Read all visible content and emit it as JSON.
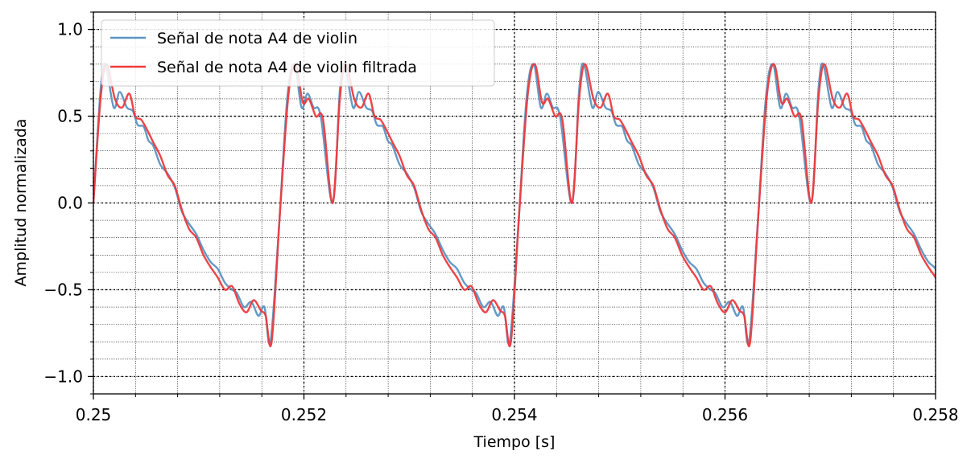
{
  "chart_data": {
    "type": "line",
    "title": "",
    "xlabel": "Tiempo [s]",
    "ylabel": "Amplitud normalizada",
    "xlim": [
      0.25,
      0.258
    ],
    "ylim": [
      -1.1,
      1.1
    ],
    "grid": true,
    "legend_position": "top-left",
    "x_ticks": [
      0.25,
      0.252,
      0.254,
      0.256,
      0.258
    ],
    "x_tick_labels": [
      "0.25",
      "0.252",
      "0.254",
      "0.256",
      "0.258"
    ],
    "y_ticks": [
      -1.0,
      -0.5,
      0.0,
      0.5,
      1.0
    ],
    "y_tick_labels": [
      "−1.0",
      "−0.5",
      "0.0",
      "0.5",
      "1.0"
    ],
    "series": [
      {
        "name": "Señal de nota A4 de violin",
        "color": "#5b93c2",
        "period_points": [
          [
            0.0,
            0.0
          ],
          [
            0.03,
            0.65
          ],
          [
            0.05,
            0.8
          ],
          [
            0.085,
            0.55
          ],
          [
            0.11,
            0.64
          ],
          [
            0.14,
            0.55
          ],
          [
            0.165,
            0.53
          ],
          [
            0.185,
            0.45
          ],
          [
            0.21,
            0.44
          ],
          [
            0.23,
            0.36
          ],
          [
            0.25,
            0.33
          ],
          [
            0.28,
            0.22
          ],
          [
            0.31,
            0.17
          ],
          [
            0.34,
            0.09
          ],
          [
            0.37,
            -0.05
          ],
          [
            0.4,
            -0.12
          ],
          [
            0.43,
            -0.18
          ],
          [
            0.46,
            -0.27
          ],
          [
            0.49,
            -0.34
          ],
          [
            0.52,
            -0.38
          ],
          [
            0.55,
            -0.46
          ],
          [
            0.58,
            -0.5
          ],
          [
            0.6,
            -0.52
          ],
          [
            0.63,
            -0.6
          ],
          [
            0.66,
            -0.57
          ],
          [
            0.69,
            -0.65
          ],
          [
            0.715,
            -0.6
          ],
          [
            0.74,
            -0.8
          ],
          [
            0.775,
            -0.15
          ],
          [
            0.81,
            0.6
          ],
          [
            0.84,
            0.8
          ],
          [
            0.87,
            0.55
          ],
          [
            0.895,
            0.63
          ],
          [
            0.92,
            0.55
          ],
          [
            0.95,
            0.5
          ],
          [
            1.0,
            0.0
          ]
        ],
        "x_start": 0.25,
        "period": 0.002273,
        "cycles": 3.52
      },
      {
        "name": "Señal de nota A4 de violin filtrada",
        "color": "#ee3a3d",
        "period_points": [
          [
            0.0,
            0.0
          ],
          [
            0.03,
            0.6
          ],
          [
            0.055,
            0.8
          ],
          [
            0.09,
            0.6
          ],
          [
            0.12,
            0.55
          ],
          [
            0.15,
            0.63
          ],
          [
            0.175,
            0.5
          ],
          [
            0.2,
            0.48
          ],
          [
            0.225,
            0.42
          ],
          [
            0.25,
            0.35
          ],
          [
            0.28,
            0.27
          ],
          [
            0.31,
            0.16
          ],
          [
            0.34,
            0.1
          ],
          [
            0.37,
            -0.04
          ],
          [
            0.4,
            -0.15
          ],
          [
            0.43,
            -0.2
          ],
          [
            0.46,
            -0.3
          ],
          [
            0.49,
            -0.37
          ],
          [
            0.52,
            -0.43
          ],
          [
            0.55,
            -0.5
          ],
          [
            0.58,
            -0.48
          ],
          [
            0.61,
            -0.58
          ],
          [
            0.64,
            -0.63
          ],
          [
            0.67,
            -0.56
          ],
          [
            0.7,
            -0.62
          ],
          [
            0.72,
            -0.65
          ],
          [
            0.745,
            -0.8
          ],
          [
            0.78,
            -0.05
          ],
          [
            0.815,
            0.62
          ],
          [
            0.845,
            0.8
          ],
          [
            0.875,
            0.58
          ],
          [
            0.9,
            0.6
          ],
          [
            0.93,
            0.5
          ],
          [
            0.96,
            0.48
          ],
          [
            1.0,
            0.0
          ]
        ],
        "x_start": 0.25,
        "period": 0.002273,
        "cycles": 3.52
      }
    ]
  }
}
